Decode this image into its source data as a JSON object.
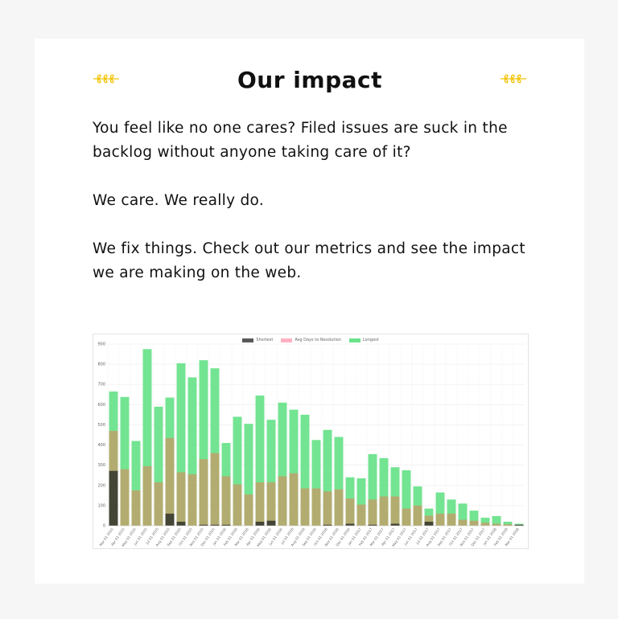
{
  "section": {
    "title": "Our impact",
    "paragraphs": [
      "You feel like no one cares? Filed issues are suck in the backlog without anyone taking care of it?",
      "We care. We really do.",
      "We fix things. Check out our metrics and see the impact we are making on the web."
    ]
  },
  "icons": {
    "left_ornament": "laurel-icon",
    "right_ornament": "laurel-icon"
  },
  "colors": {
    "accent": "#f2c200",
    "shortest": "#595959",
    "avg": "#ffb1c1",
    "longest": "#6be38c"
  },
  "chart_data": {
    "type": "bar",
    "legend_position": "top",
    "grid": true,
    "ylim": [
      0,
      900
    ],
    "yticks": [
      0,
      100,
      200,
      300,
      400,
      500,
      600,
      700,
      800,
      900
    ],
    "categories": [
      "Mar 01 2015",
      "Apr 01 2015",
      "May 01 2015",
      "Jun 01 2015",
      "Jul 01 2015",
      "Aug 01 2015",
      "Sep 01 2015",
      "Oct 01 2015",
      "Nov 01 2015",
      "Dec 01 2015",
      "Jan 01 2016",
      "Feb 01 2016",
      "Mar 01 2016",
      "Apr 01 2016",
      "May 01 2016",
      "Jun 01 2016",
      "Jul 01 2016",
      "Aug 01 2016",
      "Sep 01 2016",
      "Oct 01 2016",
      "Nov 01 2016",
      "Dec 01 2016",
      "Jan 01 2017",
      "Feb 01 2017",
      "Mar 01 2017",
      "Apr 01 2017",
      "May 01 2017",
      "Jun 01 2017",
      "Jul 01 2017",
      "Aug 01 2017",
      "Sep 01 2017",
      "Oct 01 2017",
      "Nov 01 2017",
      "Dec 01 2017",
      "Jan 01 2018",
      "Feb 01 2018",
      "Mar 01 2018"
    ],
    "series": [
      {
        "name": "Shortest",
        "values": [
          272,
          0,
          0,
          0,
          0,
          60,
          20,
          0,
          5,
          5,
          5,
          0,
          0,
          20,
          25,
          0,
          0,
          0,
          0,
          5,
          0,
          10,
          0,
          5,
          0,
          10,
          0,
          0,
          20,
          0,
          0,
          0,
          0,
          0,
          0,
          0,
          5
        ]
      },
      {
        "name": "Avg Days to Resolution",
        "values": [
          470,
          280,
          175,
          295,
          215,
          435,
          265,
          255,
          330,
          360,
          245,
          205,
          155,
          215,
          215,
          245,
          260,
          185,
          185,
          170,
          180,
          135,
          105,
          130,
          145,
          145,
          85,
          100,
          50,
          60,
          60,
          30,
          25,
          15,
          10,
          8,
          5
        ]
      },
      {
        "name": "Longest",
        "values": [
          665,
          638,
          420,
          875,
          590,
          635,
          805,
          735,
          820,
          780,
          410,
          540,
          505,
          645,
          525,
          610,
          575,
          550,
          425,
          475,
          440,
          240,
          235,
          355,
          335,
          290,
          275,
          195,
          85,
          165,
          130,
          110,
          75,
          40,
          48,
          20,
          10
        ]
      }
    ]
  }
}
